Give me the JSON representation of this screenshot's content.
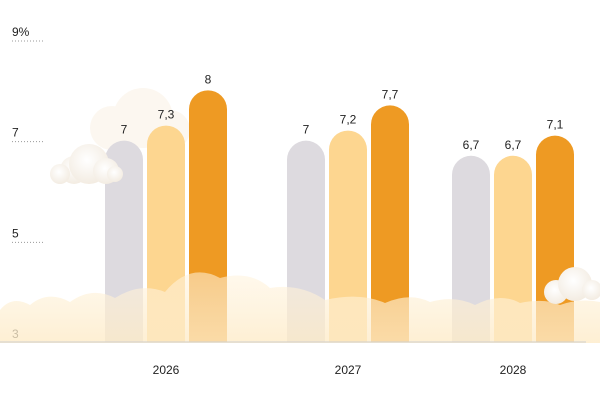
{
  "chart_data": {
    "type": "bar",
    "categories": [
      "2026",
      "2027",
      "2028"
    ],
    "series": [
      {
        "values": [
          7,
          7,
          6.7
        ],
        "labels": [
          "7",
          "7",
          "6,7"
        ],
        "color": "#dddadf"
      },
      {
        "values": [
          7.3,
          7.2,
          6.7
        ],
        "labels": [
          "7,3",
          "7,2",
          "6,7"
        ],
        "color": "#fdd690"
      },
      {
        "values": [
          8,
          7.7,
          7.1
        ],
        "labels": [
          "8",
          "7,7",
          "7,1"
        ],
        "color": "#ee9a23"
      }
    ],
    "y_ticks": [
      {
        "value": 9,
        "label": "9%"
      },
      {
        "value": 7,
        "label": "7"
      },
      {
        "value": 5,
        "label": "5"
      },
      {
        "value": 3,
        "label": "3"
      }
    ],
    "ylim": [
      3,
      9
    ],
    "grid": false,
    "decoration": "clouds"
  }
}
